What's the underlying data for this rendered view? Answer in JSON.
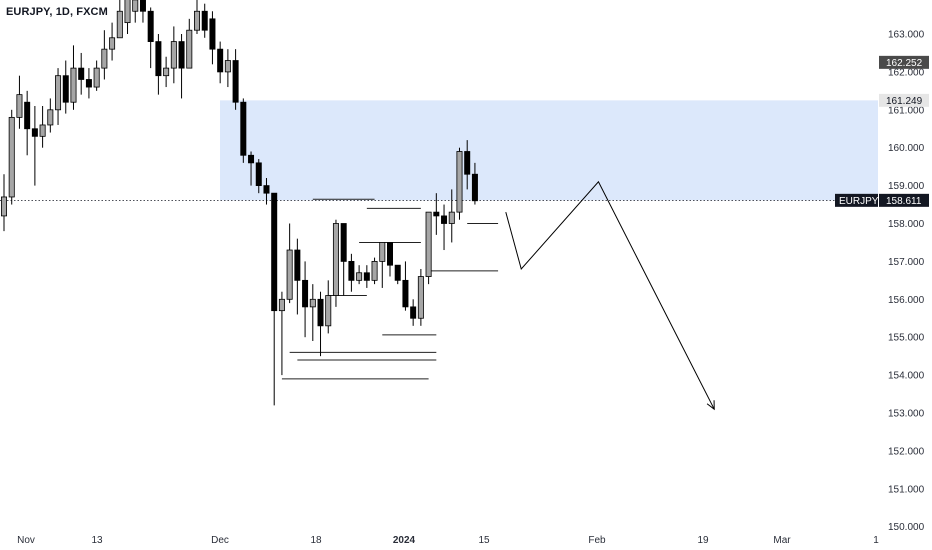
{
  "header": {
    "symbol_line": "EURJPY, 1D, FXCM"
  },
  "colors": {
    "zone": "#dce8fb",
    "bull": "#a6a6a6",
    "bear": "#000000",
    "tag_dark": "#131722",
    "tag_grey": "#4a4a4a"
  },
  "chart_data": {
    "type": "candlestick",
    "symbol": "EURJPY",
    "timeframe": "1D",
    "source": "FXCM",
    "y_ticks": [
      "163.000",
      "162.000",
      "161.000",
      "160.000",
      "159.000",
      "158.000",
      "157.000",
      "156.000",
      "155.000",
      "154.000",
      "153.000",
      "152.000",
      "151.000",
      "150.000"
    ],
    "x_ticks": [
      {
        "label": "Nov",
        "bold": false
      },
      {
        "label": "13",
        "bold": false
      },
      {
        "label": "Dec",
        "bold": false
      },
      {
        "label": "18",
        "bold": false
      },
      {
        "label": "2024",
        "bold": true
      },
      {
        "label": "15",
        "bold": false
      },
      {
        "label": "Feb",
        "bold": false
      },
      {
        "label": "19",
        "bold": false
      },
      {
        "label": "Mar",
        "bold": false
      },
      {
        "label": "1",
        "bold": false
      }
    ],
    "price_tags": [
      {
        "text": "162.252",
        "value": 162.252,
        "style": "grey"
      },
      {
        "text": "161.249",
        "value": 161.249,
        "style": "light"
      },
      {
        "text": "158.611",
        "value": 158.611,
        "style": "dark",
        "label": "EURJPY"
      }
    ],
    "zone": {
      "from": 158.611,
      "to": 161.249
    },
    "candles": [
      [
        158.2,
        158.7,
        159.3,
        157.8
      ],
      [
        158.7,
        160.8,
        161.0,
        158.5
      ],
      [
        160.8,
        161.4,
        161.9,
        160.5
      ],
      [
        161.2,
        160.5,
        161.5,
        159.8
      ],
      [
        160.5,
        160.3,
        161.1,
        159.0
      ],
      [
        160.3,
        160.6,
        161.1,
        160.0
      ],
      [
        160.6,
        161.0,
        161.3,
        160.4
      ],
      [
        161.0,
        161.9,
        162.1,
        160.6
      ],
      [
        161.9,
        161.2,
        162.3,
        160.9
      ],
      [
        161.2,
        162.1,
        162.7,
        161.0
      ],
      [
        162.1,
        161.8,
        162.5,
        161.4
      ],
      [
        161.8,
        161.6,
        162.1,
        161.3
      ],
      [
        161.6,
        162.1,
        162.3,
        161.5
      ],
      [
        162.1,
        162.6,
        163.1,
        161.8
      ],
      [
        162.6,
        162.9,
        163.3,
        162.3
      ],
      [
        162.9,
        163.6,
        164.2,
        163.1
      ],
      [
        163.3,
        164.0,
        164.3,
        163.0
      ],
      [
        163.6,
        163.9,
        164.3,
        163.3
      ],
      [
        163.9,
        163.6,
        164.2,
        163.3
      ],
      [
        163.6,
        162.8,
        163.7,
        162.1
      ],
      [
        162.8,
        161.9,
        163.0,
        161.4
      ],
      [
        161.9,
        162.1,
        162.4,
        161.6
      ],
      [
        162.1,
        162.8,
        163.2,
        161.7
      ],
      [
        162.8,
        162.1,
        163.0,
        161.3
      ],
      [
        162.1,
        163.1,
        163.4,
        162.3
      ],
      [
        163.1,
        163.6,
        163.9,
        163.0
      ],
      [
        163.6,
        163.1,
        163.8,
        162.9
      ],
      [
        163.4,
        162.6,
        163.6,
        162.2
      ],
      [
        162.6,
        162.0,
        162.8,
        161.7
      ],
      [
        162.0,
        162.3,
        162.6,
        161.6
      ],
      [
        162.3,
        161.2,
        162.6,
        161.0
      ],
      [
        161.2,
        159.8,
        161.3,
        159.6
      ],
      [
        159.8,
        159.6,
        159.9,
        159.0
      ],
      [
        159.6,
        159.0,
        159.7,
        158.8
      ],
      [
        159.0,
        158.8,
        159.2,
        158.5
      ],
      [
        158.8,
        155.7,
        158.8,
        153.2
      ],
      [
        155.7,
        156.0,
        156.2,
        154.0
      ],
      [
        156.0,
        157.3,
        158.0,
        155.9
      ],
      [
        157.3,
        156.5,
        157.6,
        155.6
      ],
      [
        156.5,
        155.8,
        157.0,
        155.0
      ],
      [
        155.8,
        156.0,
        156.4,
        154.9
      ],
      [
        156.0,
        155.3,
        156.2,
        154.5
      ],
      [
        155.3,
        156.1,
        156.5,
        155.1
      ],
      [
        156.1,
        158.0,
        158.1,
        155.8
      ],
      [
        158.0,
        157.0,
        158.0,
        156.1
      ],
      [
        157.0,
        156.5,
        157.2,
        156.2
      ],
      [
        156.5,
        156.7,
        156.9,
        156.4
      ],
      [
        156.7,
        156.5,
        156.9,
        156.3
      ],
      [
        156.5,
        157.0,
        157.1,
        156.4
      ],
      [
        157.0,
        157.5,
        157.5,
        156.3
      ],
      [
        157.5,
        156.9,
        157.5,
        156.6
      ],
      [
        156.9,
        156.5,
        156.9,
        156.4
      ],
      [
        156.5,
        155.8,
        157.0,
        155.7
      ],
      [
        155.8,
        155.5,
        156.0,
        155.3
      ],
      [
        155.5,
        156.6,
        156.8,
        155.3
      ],
      [
        156.6,
        158.3,
        158.3,
        156.4
      ],
      [
        158.3,
        158.2,
        158.8,
        157.7
      ],
      [
        158.2,
        158.0,
        158.5,
        157.3
      ],
      [
        158.0,
        158.3,
        158.9,
        157.5
      ],
      [
        158.3,
        159.9,
        160.0,
        158.1
      ],
      [
        159.9,
        159.3,
        160.2,
        158.9
      ],
      [
        159.3,
        158.6,
        159.6,
        158.5
      ]
    ],
    "levels": [
      {
        "price": 158.64,
        "from": 40,
        "to": 48
      },
      {
        "price": 158.4,
        "from": 47,
        "to": 54
      },
      {
        "price": 158.0,
        "from": 60,
        "to": 64
      },
      {
        "price": 157.5,
        "from": 46,
        "to": 54
      },
      {
        "price": 156.75,
        "from": 55,
        "to": 64
      },
      {
        "price": 156.1,
        "from": 42,
        "to": 47
      },
      {
        "price": 155.06,
        "from": 49,
        "to": 56
      },
      {
        "price": 154.6,
        "from": 37,
        "to": 56
      },
      {
        "price": 154.4,
        "from": 38,
        "to": 56
      },
      {
        "price": 153.9,
        "from": 36,
        "to": 55
      }
    ],
    "projection": [
      {
        "bar": 65,
        "price": 158.3
      },
      {
        "bar": 67,
        "price": 156.8
      },
      {
        "bar": 77,
        "price": 159.1
      },
      {
        "bar": 92,
        "price": 153.1
      }
    ]
  }
}
